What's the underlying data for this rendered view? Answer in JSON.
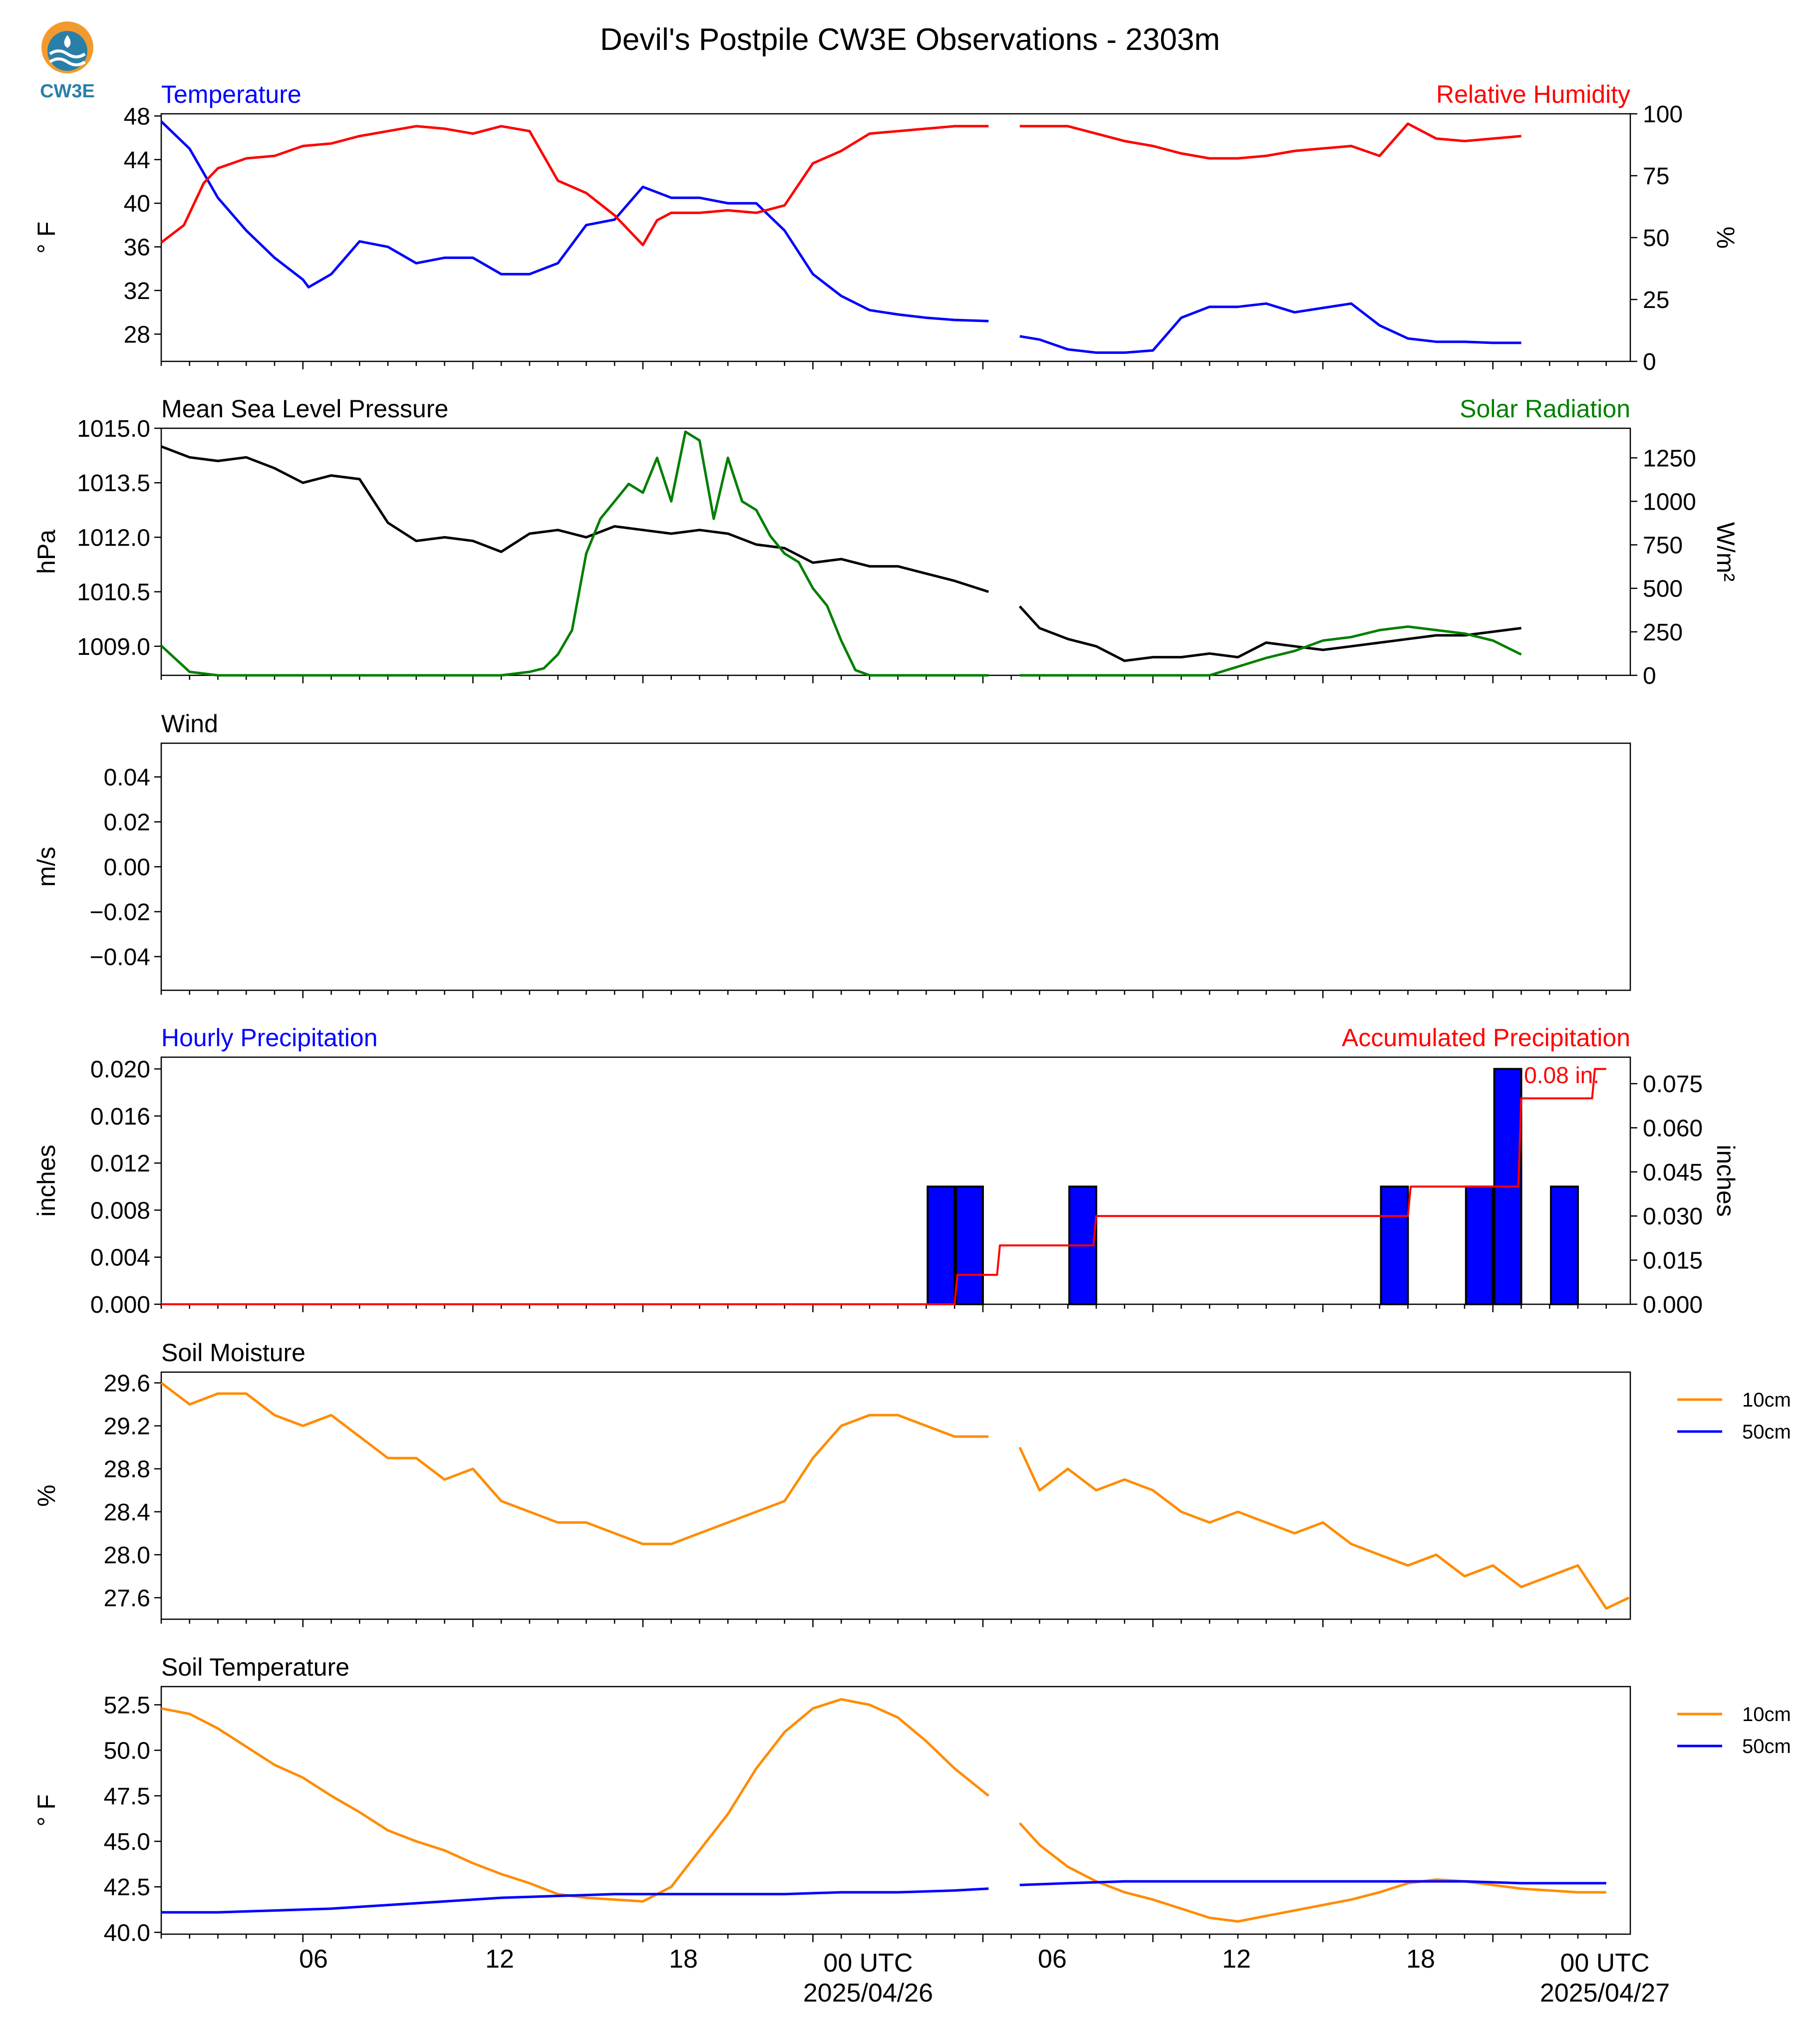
{
  "title": "Devil's Postpile CW3E Observations - 2303m",
  "logo": {
    "text": "CW3E",
    "color_outer": "#f29a2e",
    "color_inner": "#2a7fa8"
  },
  "colors": {
    "blue": "#0000ff",
    "red": "#ff0000",
    "green": "#007f00",
    "black": "#000000",
    "orange": "#ff8c00"
  },
  "x_axis": {
    "tick_labels": [
      "06",
      "12",
      "18",
      "00 UTC",
      "06",
      "12",
      "18",
      "00 UTC"
    ],
    "date_labels": [
      "2025/04/26",
      "2025/04/27"
    ]
  },
  "chart_data": [
    {
      "type": "line",
      "panel": "temperature",
      "left_title": "Temperature",
      "right_title": "Relative Humidity",
      "ylabel_left": "° F",
      "ylabel_right": "%",
      "ylim_left": [
        25.5,
        48.2
      ],
      "ylim_right": [
        0,
        100
      ],
      "yticks_left": [
        "48",
        "44",
        "40",
        "36",
        "32",
        "28"
      ],
      "yticks_right": [
        "100",
        "75",
        "50",
        "25",
        "0"
      ],
      "x_range_hours": [
        1,
        49
      ],
      "gap_hours": [
        30.2,
        31.3
      ],
      "series": [
        {
          "name": "Temperature",
          "axis": "left",
          "color": "#0000ff",
          "x": [
            1,
            2,
            3,
            4,
            5,
            6,
            6.2,
            7,
            8,
            9,
            10,
            11,
            12,
            13,
            14,
            15,
            16,
            17,
            18,
            19,
            20,
            21,
            22,
            23,
            24,
            25,
            26,
            27,
            28,
            29,
            30.2,
            31.3,
            32,
            33,
            34,
            35,
            36,
            37,
            38,
            39,
            40,
            41,
            42,
            43,
            44,
            45,
            46,
            47,
            48,
            49
          ],
          "y": [
            47.5,
            45,
            40.5,
            37.5,
            35,
            33,
            32.3,
            33.5,
            36.5,
            36,
            34.5,
            35,
            35,
            33.5,
            33.5,
            34.5,
            38,
            38.5,
            41.5,
            40.5,
            40.5,
            40,
            40,
            37.5,
            33.5,
            31.5,
            30.2,
            29.8,
            29.5,
            29.3,
            29.2,
            27.8,
            27.5,
            26.6,
            26.3,
            26.3,
            26.5,
            29.5,
            30.5,
            30.5,
            30.8,
            30,
            30.4,
            30.8,
            28.8,
            27.6,
            27.3,
            27.3,
            27.2,
            27.2
          ]
        },
        {
          "name": "Relative Humidity",
          "axis": "right",
          "color": "#ff0000",
          "x": [
            1,
            1.8,
            2.5,
            3,
            4,
            5,
            6,
            7,
            8,
            9,
            10,
            11,
            12,
            13,
            14,
            15,
            16,
            17,
            17.5,
            18,
            18.5,
            19,
            20,
            21,
            22,
            23,
            24,
            25,
            26,
            27,
            28,
            29,
            30.2,
            31.3,
            32,
            33,
            34,
            35,
            36,
            37,
            38,
            39,
            40,
            41,
            42,
            43,
            44,
            45,
            46,
            47,
            48,
            49
          ],
          "y": [
            48,
            55,
            72,
            78,
            82,
            83,
            87,
            88,
            91,
            93,
            95,
            94,
            92,
            95,
            93,
            73,
            68,
            59,
            53,
            47,
            57,
            60,
            60,
            61,
            60,
            63,
            80,
            85,
            92,
            93,
            94,
            95,
            95,
            95,
            95,
            95,
            92,
            89,
            87,
            84,
            82,
            82,
            83,
            85,
            86,
            87,
            83,
            96,
            90,
            89,
            90,
            91
          ]
        }
      ]
    },
    {
      "type": "line",
      "panel": "pressure",
      "left_title": "Mean Sea Level Pressure",
      "right_title": "Solar Radiation",
      "ylabel_left": "hPa",
      "ylabel_right": "W/m²",
      "ylim_left": [
        1008.2,
        1015.0
      ],
      "ylim_right": [
        0,
        1420
      ],
      "yticks_left": [
        "1015.0",
        "1013.5",
        "1012.0",
        "1010.5",
        "1009.0"
      ],
      "yticks_right": [
        "1250",
        "1000",
        "750",
        "500",
        "250",
        "0"
      ],
      "series": [
        {
          "name": "Mean Sea Level Pressure",
          "axis": "left",
          "color": "#000000",
          "x": [
            1,
            2,
            3,
            4,
            5,
            6,
            7,
            8,
            9,
            10,
            11,
            12,
            13,
            14,
            15,
            16,
            17,
            18,
            19,
            20,
            21,
            22,
            23,
            24,
            25,
            26,
            27,
            28,
            29,
            30.2,
            31.3,
            32,
            33,
            34,
            35,
            36,
            37,
            38,
            39,
            40,
            41,
            42,
            43,
            44,
            45,
            46,
            47,
            48,
            49
          ],
          "y": [
            1014.5,
            1014.2,
            1014.1,
            1014.2,
            1013.9,
            1013.5,
            1013.7,
            1013.6,
            1012.4,
            1011.9,
            1012.0,
            1011.9,
            1011.6,
            1012.1,
            1012.2,
            1012.0,
            1012.3,
            1012.2,
            1012.1,
            1012.2,
            1012.1,
            1011.8,
            1011.7,
            1011.3,
            1011.4,
            1011.2,
            1011.2,
            1011.0,
            1010.8,
            1010.5,
            1010.1,
            1009.5,
            1009.2,
            1009.0,
            1008.6,
            1008.7,
            1008.7,
            1008.8,
            1008.7,
            1009.1,
            1009.0,
            1008.9,
            1009.0,
            1009.1,
            1009.2,
            1009.3,
            1009.3,
            1009.4,
            1009.5
          ]
        },
        {
          "name": "Solar Radiation",
          "axis": "right",
          "color": "#007f00",
          "x": [
            1,
            2,
            3,
            4,
            5,
            6,
            7,
            8,
            9,
            10,
            11,
            12,
            13,
            14,
            14.5,
            15,
            15.5,
            16,
            16.5,
            17,
            17.5,
            18,
            18.5,
            19,
            19.5,
            20,
            20.5,
            21,
            21.5,
            22,
            22.5,
            23,
            23.5,
            24,
            24.5,
            25,
            25.5,
            26,
            27,
            28,
            29,
            30.2,
            31.3,
            32,
            33,
            34,
            35,
            36,
            37,
            38,
            39,
            40,
            41,
            42,
            43,
            44,
            45,
            46,
            47,
            48,
            49
          ],
          "y": [
            170,
            20,
            0,
            0,
            0,
            0,
            0,
            0,
            0,
            0,
            0,
            0,
            0,
            20,
            40,
            120,
            260,
            700,
            900,
            1000,
            1100,
            1050,
            1250,
            1000,
            1400,
            1350,
            900,
            1250,
            1000,
            950,
            800,
            700,
            650,
            500,
            400,
            200,
            30,
            0,
            0,
            0,
            0,
            0,
            0,
            0,
            0,
            0,
            0,
            0,
            0,
            0,
            50,
            100,
            140,
            200,
            220,
            260,
            280,
            260,
            240,
            200,
            120
          ]
        }
      ]
    },
    {
      "type": "line",
      "panel": "wind",
      "left_title": "Wind",
      "ylabel_left": "m/s",
      "ylim_left": [
        -0.055,
        0.055
      ],
      "yticks_left": [
        "0.04",
        "0.02",
        "0.00",
        "−0.02",
        "−0.04"
      ],
      "series": []
    },
    {
      "type": "bar",
      "panel": "precipitation",
      "left_title": "Hourly Precipitation",
      "right_title": "Accumulated Precipitation",
      "ylabel_left": "inches",
      "ylabel_right": "inches",
      "ylim_left": [
        0,
        0.021
      ],
      "ylim_right": [
        0,
        0.084
      ],
      "yticks_left": [
        "0.020",
        "0.016",
        "0.012",
        "0.008",
        "0.004",
        "0.000"
      ],
      "yticks_right": [
        "0.075",
        "0.060",
        "0.045",
        "0.030",
        "0.015",
        "0.000"
      ],
      "annotation": "0.08 in.",
      "series": [
        {
          "name": "Hourly Precipitation",
          "axis": "left",
          "color": "#0000ff",
          "x": [
            29,
            30,
            34,
            45,
            48,
            49,
            51
          ],
          "values": [
            0.01,
            0.01,
            0.01,
            0.01,
            0.01,
            0.02,
            0.01
          ]
        },
        {
          "name": "Accumulated Precipitation",
          "axis": "right",
          "color": "#ff0000",
          "x": [
            1,
            29,
            29.1,
            30.5,
            30.6,
            31.3,
            32.3,
            33.9,
            34,
            45,
            45.1,
            48.9,
            49,
            50,
            50.1,
            51.5,
            51.6,
            52
          ],
          "y": [
            0,
            0,
            0.01,
            0.01,
            0.02,
            0.02,
            0.02,
            0.02,
            0.03,
            0.03,
            0.04,
            0.04,
            0.07,
            0.07,
            0.07,
            0.07,
            0.08,
            0.08
          ]
        }
      ]
    },
    {
      "type": "line",
      "panel": "soil_moisture",
      "left_title": "Soil Moisture",
      "ylabel_left": "%",
      "ylim_left": [
        27.4,
        29.7
      ],
      "yticks_left": [
        "29.6",
        "29.2",
        "28.8",
        "28.4",
        "28.0",
        "27.6"
      ],
      "legend": [
        "10cm",
        "50cm"
      ],
      "series": [
        {
          "name": "10cm",
          "color": "#ff8c00",
          "x": [
            1,
            2,
            3,
            4,
            5,
            6,
            7,
            8,
            9,
            10,
            11,
            12,
            13,
            14,
            15,
            16,
            17,
            18,
            19,
            20,
            21,
            22,
            23,
            24,
            25,
            26,
            27,
            28,
            29,
            30.2,
            31.3,
            32,
            33,
            34,
            35,
            36,
            37,
            38,
            39,
            40,
            41,
            42,
            43,
            44,
            45,
            46,
            47,
            48,
            49,
            50,
            51,
            52,
            52.8
          ],
          "y": [
            29.6,
            29.4,
            29.5,
            29.5,
            29.3,
            29.2,
            29.3,
            29.1,
            28.9,
            28.9,
            28.7,
            28.8,
            28.5,
            28.4,
            28.3,
            28.3,
            28.2,
            28.1,
            28.1,
            28.2,
            28.3,
            28.4,
            28.5,
            28.9,
            29.2,
            29.3,
            29.3,
            29.2,
            29.1,
            29.1,
            29.0,
            28.6,
            28.8,
            28.6,
            28.7,
            28.6,
            28.4,
            28.3,
            28.4,
            28.3,
            28.2,
            28.3,
            28.1,
            28.0,
            27.9,
            28.0,
            27.8,
            27.9,
            27.7,
            27.8,
            27.9,
            27.5,
            27.6
          ]
        }
      ]
    },
    {
      "type": "line",
      "panel": "soil_temperature",
      "left_title": "Soil Temperature",
      "ylabel_left": "° F",
      "ylim_left": [
        39.9,
        53.5
      ],
      "yticks_left": [
        "52.5",
        "50.0",
        "47.5",
        "45.0",
        "42.5",
        "40.0"
      ],
      "legend": [
        "10cm",
        "50cm"
      ],
      "series": [
        {
          "name": "10cm",
          "color": "#ff8c00",
          "x": [
            1,
            2,
            3,
            4,
            5,
            6,
            7,
            8,
            9,
            10,
            11,
            12,
            13,
            14,
            15,
            16,
            17,
            18,
            19,
            20,
            21,
            22,
            23,
            24,
            25,
            26,
            27,
            28,
            29,
            30.2,
            31.3,
            32,
            33,
            34,
            35,
            36,
            37,
            38,
            39,
            40,
            41,
            42,
            43,
            44,
            45,
            46,
            47,
            48,
            49,
            50,
            51,
            52
          ],
          "y": [
            52.3,
            52.0,
            51.2,
            50.2,
            49.2,
            48.5,
            47.5,
            46.6,
            45.6,
            45.0,
            44.5,
            43.8,
            43.2,
            42.7,
            42.1,
            41.9,
            41.8,
            41.7,
            42.5,
            44.5,
            46.5,
            49.0,
            51.0,
            52.3,
            52.8,
            52.5,
            51.8,
            50.5,
            49.0,
            47.5,
            46.0,
            44.8,
            43.6,
            42.8,
            42.2,
            41.8,
            41.3,
            40.8,
            40.6,
            40.9,
            41.2,
            41.5,
            41.8,
            42.2,
            42.7,
            42.9,
            42.8,
            42.6,
            42.4,
            42.3,
            42.2,
            42.2
          ]
        },
        {
          "name": "50cm",
          "color": "#0000ff",
          "x": [
            1,
            3,
            5,
            7,
            9,
            11,
            13,
            15,
            17,
            19,
            21,
            23,
            25,
            27,
            29,
            30.2,
            31.3,
            33,
            35,
            37,
            39,
            41,
            43,
            45,
            47,
            49,
            51,
            52
          ],
          "y": [
            41.1,
            41.1,
            41.2,
            41.3,
            41.5,
            41.7,
            41.9,
            42.0,
            42.1,
            42.1,
            42.1,
            42.1,
            42.2,
            42.2,
            42.3,
            42.4,
            42.6,
            42.7,
            42.8,
            42.8,
            42.8,
            42.8,
            42.8,
            42.8,
            42.8,
            42.7,
            42.7,
            42.7
          ]
        }
      ]
    }
  ]
}
